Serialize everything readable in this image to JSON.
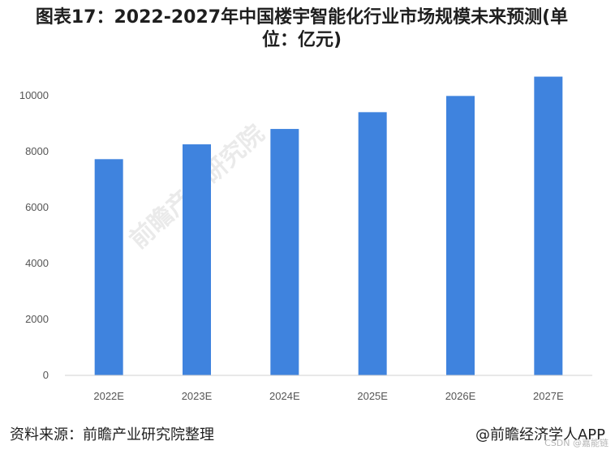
{
  "title": "图表17：2022-2027年中国楼宇智能化行业市场规模未来预测(单位：亿元)",
  "chart_data": {
    "type": "bar",
    "categories": [
      "2022E",
      "2023E",
      "2024E",
      "2025E",
      "2026E",
      "2027E"
    ],
    "values": [
      7730,
      8260,
      8810,
      9410,
      9990,
      10680
    ],
    "ylim": [
      0,
      10000
    ],
    "yticks": [
      "0",
      "2000",
      "4000",
      "6000",
      "8000",
      "10000"
    ],
    "bar_color": "#3f83de",
    "grid": false,
    "legend": "none"
  },
  "footer": {
    "source": "资料来源：前瞻产业研究院整理",
    "app": "@前瞻经济学人APP"
  },
  "watermark": "前瞻产业研究院",
  "credit": "CSDN @嘉能链"
}
